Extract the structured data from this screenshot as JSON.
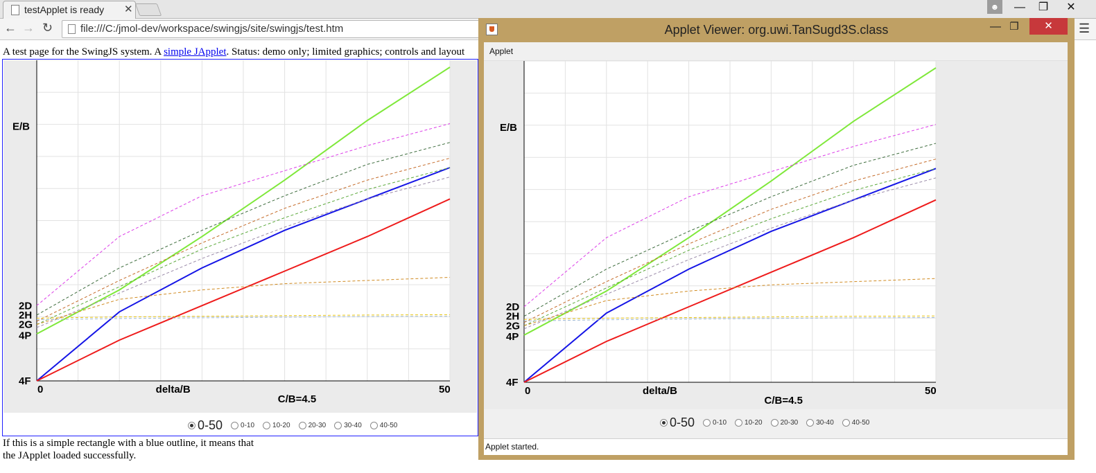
{
  "browser": {
    "tab_title": "testApplet is ready",
    "tab_close": "✕",
    "user_icon": "person-icon",
    "window_controls": {
      "minimize": "—",
      "maximize": "❐",
      "close": "✕"
    },
    "back": "←",
    "forward": "→",
    "reload": "↻",
    "url": "file:///C:/jmol-dev/workspace/swingjs/site/swingjs/test.htm",
    "menu": "☰"
  },
  "page": {
    "intro_before": "A test page for the SwingJS system. A ",
    "intro_link": "simple JApplet",
    "intro_after": ". Status: demo only; limited graphics; controls and layout",
    "outro_line1": "If this is a simple rectangle with a blue outline, it means that",
    "outro_line2": "the JApplet loaded successfully."
  },
  "viewer": {
    "title": "Applet Viewer: org.uwi.TanSugd3S.class",
    "menu_applet": "Applet",
    "status": "Applet started.",
    "minimize": "—",
    "maximize": "❐",
    "close": "✕"
  },
  "chart_data": {
    "type": "line",
    "xlabel": "delta/B",
    "subtitle": "C/B=4.5",
    "ylabel": "E/B",
    "x_tick_labels": [
      "0",
      "50"
    ],
    "xlim": [
      0,
      50
    ],
    "y_level_labels": [
      "2D",
      "2H",
      "2G",
      "4P",
      "4F"
    ],
    "grid": true,
    "series": [
      {
        "style": "solid",
        "color": "#7fe83a",
        "x": [
          0,
          10,
          20,
          30,
          40,
          50
        ],
        "y": [
          0.15,
          0.29,
          0.46,
          0.64,
          0.83,
          1.0
        ]
      },
      {
        "style": "solid",
        "color": "#1515e6",
        "x": [
          0,
          10,
          20,
          30,
          40,
          50
        ],
        "y": [
          0.0,
          0.22,
          0.36,
          0.48,
          0.58,
          0.68
        ]
      },
      {
        "style": "solid",
        "color": "#ee1b1b",
        "x": [
          0,
          10,
          20,
          30,
          40,
          50
        ],
        "y": [
          0.0,
          0.13,
          0.24,
          0.35,
          0.46,
          0.58
        ]
      },
      {
        "style": "dashed",
        "color": "#dc3ce8",
        "x": [
          0,
          10,
          20,
          30,
          40,
          50
        ],
        "y": [
          0.24,
          0.46,
          0.59,
          0.67,
          0.75,
          0.82
        ]
      },
      {
        "style": "dashed",
        "color": "#3c6b3c",
        "x": [
          0,
          10,
          20,
          30,
          40,
          50
        ],
        "y": [
          0.21,
          0.36,
          0.48,
          0.59,
          0.69,
          0.76
        ]
      },
      {
        "style": "dashed",
        "color": "#c46a28",
        "x": [
          0,
          10,
          20,
          30,
          40,
          50
        ],
        "y": [
          0.19,
          0.32,
          0.44,
          0.55,
          0.64,
          0.71
        ]
      },
      {
        "style": "dashed",
        "color": "#5aa83a",
        "x": [
          0,
          10,
          20,
          30,
          40,
          50
        ],
        "y": [
          0.18,
          0.3,
          0.42,
          0.52,
          0.61,
          0.68
        ]
      },
      {
        "style": "dashed",
        "color": "#9a8aa8",
        "x": [
          0,
          10,
          20,
          30,
          40,
          50
        ],
        "y": [
          0.17,
          0.28,
          0.39,
          0.49,
          0.58,
          0.65
        ]
      },
      {
        "style": "dashed",
        "color": "#d08a20",
        "x": [
          0,
          10,
          20,
          30,
          40,
          50
        ],
        "y": [
          0.18,
          0.26,
          0.29,
          0.31,
          0.32,
          0.33
        ]
      },
      {
        "style": "dashed",
        "color": "#e8c410",
        "x": [
          0,
          10,
          20,
          30,
          40,
          50
        ],
        "y": [
          0.2,
          0.204,
          0.206,
          0.208,
          0.21,
          0.211
        ]
      },
      {
        "style": "dashed",
        "color": "#9db7cf",
        "x": [
          0,
          10,
          20,
          30,
          40,
          50
        ],
        "y": [
          0.195,
          0.199,
          0.201,
          0.203,
          0.205,
          0.206
        ]
      }
    ]
  },
  "range_options": [
    {
      "label": "0-50",
      "selected": true
    },
    {
      "label": "0-10",
      "selected": false
    },
    {
      "label": "10-20",
      "selected": false
    },
    {
      "label": "20-30",
      "selected": false
    },
    {
      "label": "30-40",
      "selected": false
    },
    {
      "label": "40-50",
      "selected": false
    }
  ]
}
